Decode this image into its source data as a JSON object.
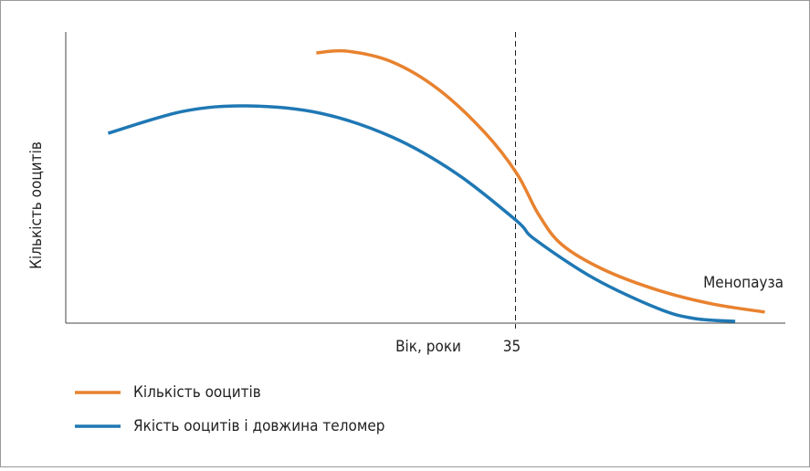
{
  "chart_data": {
    "type": "line",
    "xlabel": "Вік, роки",
    "ylabel": "Кількість ооцитів",
    "annotation": "Менопауза",
    "xlim": [
      0,
      56
    ],
    "xticks": [
      35
    ],
    "ylim": [
      0,
      100
    ],
    "series": [
      {
        "name": "Кількість ооцитів",
        "color": "#e8822f",
        "x": [
          19.5,
          21.9,
          25.4,
          29.0,
          32.6,
          35.1,
          36.8,
          38.6,
          41.8,
          46.1,
          50.3,
          54.4
        ],
        "values": [
          92.8,
          93.4,
          89.7,
          80.3,
          65.5,
          51.4,
          37.3,
          27.0,
          18.5,
          11.3,
          6.6,
          3.8
        ]
      },
      {
        "name": "Якість ооцитів і довжина теломер",
        "color": "#1f78b4",
        "x": [
          3.3,
          9.1,
          14.1,
          19.8,
          25.4,
          30.4,
          35.1,
          36.5,
          41.1,
          46.1,
          48.9,
          52.1
        ],
        "values": [
          65.2,
          72.7,
          74.6,
          72.1,
          63.9,
          51.4,
          35.1,
          28.8,
          15.4,
          5.0,
          1.6,
          0.6
        ]
      }
    ]
  }
}
